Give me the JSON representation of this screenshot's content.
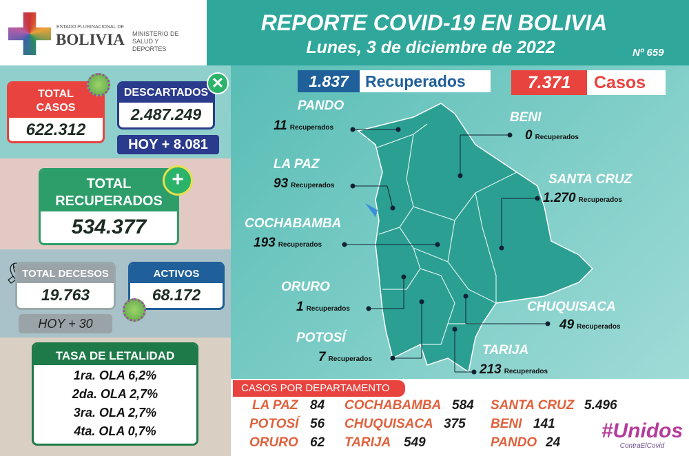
{
  "header": {
    "logo_small": "ESTADO PLURINACIONAL DE",
    "logo_big": "BOLIVIA",
    "ministry": "MINISTERIO DE SALUD Y DEPORTES",
    "title": "REPORTE COVID-19 EN BOLIVIA",
    "date": "Lunes, 3 de diciembre de 2022",
    "report_number": "Nº 659"
  },
  "total_casos": {
    "label": "TOTAL CASOS",
    "value": "622.312"
  },
  "descartados": {
    "label": "DESCARTADOS",
    "value": "2.487.249",
    "today": "HOY + 8.081"
  },
  "total_recuperados": {
    "label": "TOTAL RECUPERADOS",
    "value": "534.377"
  },
  "decesos": {
    "label": "TOTAL DECESOS",
    "value": "19.763",
    "today": "HOY + 30"
  },
  "activos": {
    "label": "ACTIVOS",
    "value": "68.172"
  },
  "letalidad": {
    "label": "TASA DE LETALIDAD",
    "rows": [
      "1ra. OLA 6,2%",
      "2da. OLA 2,7%",
      "3ra. OLA 2,7%",
      "4ta. OLA 0,7%"
    ]
  },
  "daily": {
    "recuperados_value": "1.837",
    "recuperados_label": "Recuperados",
    "casos_value": "7.371",
    "casos_label": "Casos"
  },
  "map_depts": [
    {
      "name": "PANDO",
      "value": "11",
      "unit": "Recuperados"
    },
    {
      "name": "BENI",
      "value": "0",
      "unit": "Recuperados"
    },
    {
      "name": "LA PAZ",
      "value": "93",
      "unit": "Recuperados"
    },
    {
      "name": "SANTA CRUZ",
      "value": "1.270",
      "unit": "Recuperados"
    },
    {
      "name": "COCHABAMBA",
      "value": "193",
      "unit": "Recuperados"
    },
    {
      "name": "ORURO",
      "value": "1",
      "unit": "Recuperados"
    },
    {
      "name": "CHUQUISACA",
      "value": "49",
      "unit": "Recuperados"
    },
    {
      "name": "POTOSÍ",
      "value": "7",
      "unit": "Recuperados"
    },
    {
      "name": "TARIJA",
      "value": "213",
      "unit": "Recuperados"
    }
  ],
  "casos_por_departamento": {
    "label": "CASOS POR DEPARTAMENTO",
    "rows": [
      [
        {
          "name": "LA PAZ",
          "value": "84"
        },
        {
          "name": "COCHABAMBA",
          "value": "584"
        },
        {
          "name": "SANTA CRUZ",
          "value": "5.496"
        }
      ],
      [
        {
          "name": "POTOSÍ",
          "value": "56"
        },
        {
          "name": "CHUQUISACA",
          "value": "375"
        },
        {
          "name": "BENI",
          "value": "141"
        }
      ],
      [
        {
          "name": "ORURO",
          "value": "62"
        },
        {
          "name": "TARIJA",
          "value": "549"
        },
        {
          "name": "PANDO",
          "value": "24"
        }
      ]
    ]
  },
  "campaign": {
    "big": "#Unidos",
    "small": "ContraElCovid"
  },
  "colors": {
    "teal": "#2fa79b",
    "red": "#e8433f",
    "navy": "#2a3a8c",
    "green": "#1f7a4a",
    "orange": "#e0613c"
  }
}
